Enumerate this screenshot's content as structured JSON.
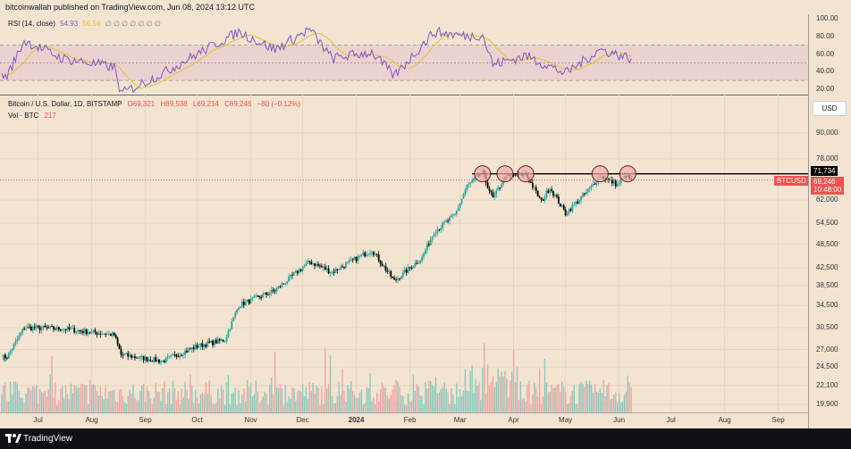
{
  "header": {
    "publisher": "bitcoinwallah published on TradingView.com, Jun 08, 2024 13:12 UTC"
  },
  "footer": {
    "brand": "TradingView"
  },
  "rsi": {
    "legend_label": "RSI (14, close)",
    "value": "54.93",
    "signal": "56.56",
    "icons": "∅ ∅ ∅ ∅ ∅ ∅ ∅",
    "ticks": [
      "100.00",
      "80.00",
      "60.00",
      "40.00",
      "20.00"
    ]
  },
  "main": {
    "symbol": "Bitcoin / U.S. Dollar, 1D, BITSTAMP",
    "open": "O69,321",
    "high": "H69,538",
    "low": "L69,214",
    "close": "C69,246",
    "change": "−80 (−0.12%)",
    "vol_label": "Vol · BTC",
    "vol_value": "217",
    "currency": "USD",
    "price_ticks": [
      "90,000",
      "78,000",
      "62,000",
      "54,500",
      "48,500",
      "42,500",
      "38,500",
      "34,500",
      "30,500",
      "27,000",
      "24,500",
      "22,100",
      "19,900"
    ],
    "resistance_label": "71,734",
    "ticker_label": "BTCUSD",
    "last_price": "69,246",
    "countdown": "10:48:00"
  },
  "x_ticks": [
    "Jul",
    "Aug",
    "Sep",
    "Oct",
    "Nov",
    "Dec",
    "2024",
    "Feb",
    "Mar",
    "Apr",
    "May",
    "Jun",
    "Jul",
    "Aug",
    "Sep"
  ],
  "colors": {
    "up": "#26a69a",
    "down": "#ef5350",
    "rsi": "#7e57c2",
    "signal": "#e6c229",
    "last": "#ef5350",
    "resistance": "#000000",
    "circle_fill": "#f4a9a9"
  },
  "chart_data": {
    "type": "candlestick",
    "title": "Bitcoin / U.S. Dollar, 1D, BITSTAMP",
    "y_scale": "log",
    "ylim": [
      19900,
      95000
    ],
    "resistance": 71734,
    "last": 69246,
    "swing_points": [
      {
        "date": "2023-06-13",
        "price": 25900
      },
      {
        "date": "2023-06-23",
        "price": 30500
      },
      {
        "date": "2023-07-15",
        "price": 30300
      },
      {
        "date": "2023-08-14",
        "price": 29300
      },
      {
        "date": "2023-08-18",
        "price": 26200
      },
      {
        "date": "2023-09-11",
        "price": 25300
      },
      {
        "date": "2023-10-01",
        "price": 27500
      },
      {
        "date": "2023-10-17",
        "price": 28500
      },
      {
        "date": "2023-10-25",
        "price": 34500
      },
      {
        "date": "2023-11-15",
        "price": 37500
      },
      {
        "date": "2023-12-05",
        "price": 44000
      },
      {
        "date": "2023-12-18",
        "price": 41500
      },
      {
        "date": "2024-01-10",
        "price": 47000
      },
      {
        "date": "2024-01-23",
        "price": 39500
      },
      {
        "date": "2024-02-08",
        "price": 45000
      },
      {
        "date": "2024-02-15",
        "price": 52000
      },
      {
        "date": "2024-02-27",
        "price": 57000
      },
      {
        "date": "2024-03-05",
        "price": 67000
      },
      {
        "date": "2024-03-14",
        "price": 72000
      },
      {
        "date": "2024-03-20",
        "price": 62500
      },
      {
        "date": "2024-03-27",
        "price": 70500
      },
      {
        "date": "2024-04-08",
        "price": 71600
      },
      {
        "date": "2024-04-17",
        "price": 61500
      },
      {
        "date": "2024-04-22",
        "price": 66500
      },
      {
        "date": "2024-05-01",
        "price": 57500
      },
      {
        "date": "2024-05-15",
        "price": 66000
      },
      {
        "date": "2024-05-21",
        "price": 71000
      },
      {
        "date": "2024-05-31",
        "price": 67500
      },
      {
        "date": "2024-06-05",
        "price": 71000
      },
      {
        "date": "2024-06-08",
        "price": 69246
      }
    ],
    "rsi_points": [
      {
        "date": "2023-06-13",
        "value": 35
      },
      {
        "date": "2023-06-23",
        "value": 75
      },
      {
        "date": "2023-07-15",
        "value": 55
      },
      {
        "date": "2023-08-14",
        "value": 45
      },
      {
        "date": "2023-08-18",
        "value": 15
      },
      {
        "date": "2023-09-11",
        "value": 38
      },
      {
        "date": "2023-10-01",
        "value": 60
      },
      {
        "date": "2023-10-25",
        "value": 85
      },
      {
        "date": "2023-11-15",
        "value": 65
      },
      {
        "date": "2023-12-05",
        "value": 88
      },
      {
        "date": "2023-12-18",
        "value": 55
      },
      {
        "date": "2024-01-10",
        "value": 62
      },
      {
        "date": "2024-01-23",
        "value": 35
      },
      {
        "date": "2024-02-15",
        "value": 85
      },
      {
        "date": "2024-03-05",
        "value": 80
      },
      {
        "date": "2024-03-14",
        "value": 82
      },
      {
        "date": "2024-03-20",
        "value": 48
      },
      {
        "date": "2024-04-08",
        "value": 58
      },
      {
        "date": "2024-05-01",
        "value": 38
      },
      {
        "date": "2024-05-21",
        "value": 65
      },
      {
        "date": "2024-06-08",
        "value": 55
      }
    ]
  }
}
